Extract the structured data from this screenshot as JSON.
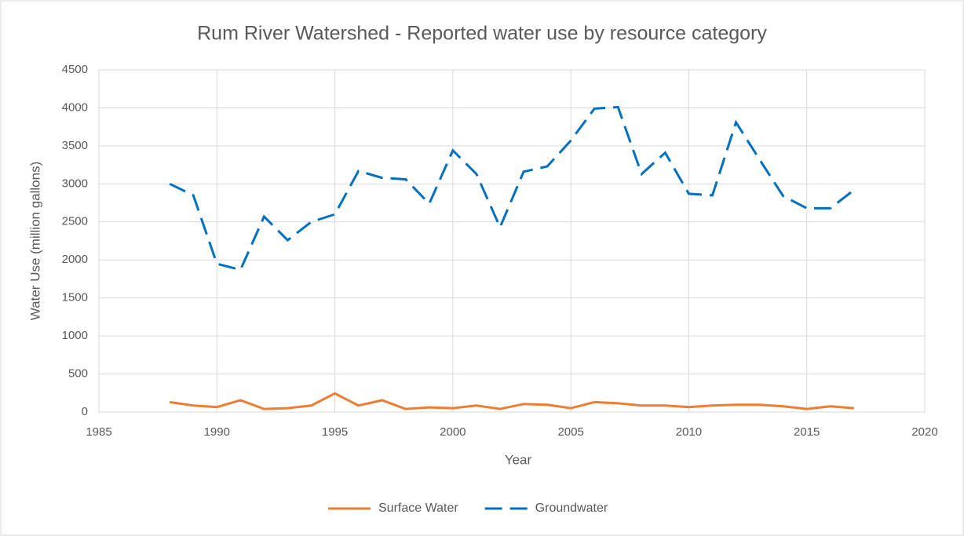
{
  "chart_data": {
    "type": "line",
    "title": "Rum River Watershed - Reported water use by resource category",
    "xlabel": "Year",
    "ylabel": "Water Use (million gallons)",
    "x": [
      1988,
      1989,
      1990,
      1991,
      1992,
      1993,
      1994,
      1995,
      1996,
      1997,
      1998,
      1999,
      2000,
      2001,
      2002,
      2003,
      2004,
      2005,
      2006,
      2007,
      2008,
      2009,
      2010,
      2011,
      2012,
      2013,
      2014,
      2015,
      2016,
      2017
    ],
    "series": [
      {
        "name": "Surface Water",
        "color": "#ed7d31",
        "style": "solid",
        "values": [
          130,
          85,
          65,
          155,
          40,
          50,
          85,
          245,
          85,
          155,
          40,
          60,
          50,
          85,
          40,
          105,
          95,
          50,
          130,
          115,
          85,
          85,
          65,
          85,
          95,
          95,
          75,
          40,
          75,
          50
        ]
      },
      {
        "name": "Groundwater",
        "color": "#0070c0",
        "style": "dashed",
        "values": [
          3000,
          2850,
          1950,
          1870,
          2570,
          2260,
          2500,
          2600,
          3170,
          3080,
          3060,
          2740,
          3440,
          3130,
          2430,
          3160,
          3230,
          3570,
          3990,
          4010,
          3130,
          3410,
          2870,
          2850,
          3810,
          3320,
          2840,
          2680,
          2680,
          2920
        ]
      }
    ],
    "xlim": [
      1985,
      2020
    ],
    "xticks": [
      1985,
      1990,
      1995,
      2000,
      2005,
      2010,
      2015,
      2020
    ],
    "ylim": [
      0,
      4500
    ],
    "yticks": [
      0,
      500,
      1000,
      1500,
      2000,
      2500,
      3000,
      3500,
      4000,
      4500
    ],
    "grid": true,
    "legend": "bottom"
  }
}
